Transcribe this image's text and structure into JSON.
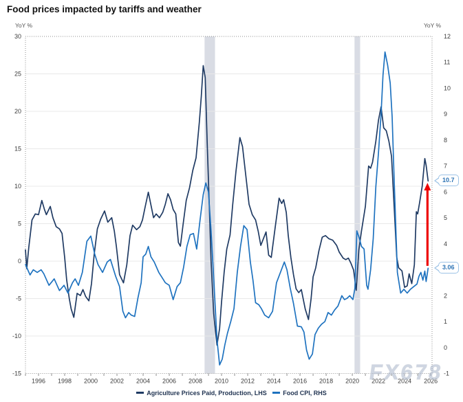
{
  "chart_data": {
    "type": "line",
    "title": "Food prices impacted by tariffs and weather",
    "watermark": "FX678",
    "grid": "horizontal-left-axis-only",
    "legend_position": "bottom-center",
    "left_axis": {
      "label": "YoY %",
      "min": -15,
      "max": 30,
      "ticks": [
        30,
        25,
        20,
        15,
        10,
        5,
        0,
        -5,
        -10,
        -15
      ]
    },
    "right_axis": {
      "label": "YoY %",
      "min": -1,
      "max": 12,
      "ticks": [
        12,
        11,
        10,
        9,
        8,
        7,
        6,
        5,
        4,
        3,
        2,
        1,
        0,
        -1
      ]
    },
    "x_axis": {
      "min": 1995,
      "max": 2026.1,
      "tick_labels": [
        1996,
        1998,
        2000,
        2002,
        2004,
        2006,
        2008,
        2010,
        2012,
        2014,
        2016,
        2018,
        2020,
        2022,
        2024,
        2026
      ]
    },
    "recession_bands": [
      {
        "from": 2008.7,
        "to": 2009.5
      },
      {
        "from": 2020.17,
        "to": 2020.6
      }
    ],
    "series": [
      {
        "name": "Agriculture Prices Paid, Production, LHS",
        "axis": "left",
        "color": "#1f3a63",
        "points": [
          [
            1995.0,
            1.5
          ],
          [
            1995.1,
            -1.0
          ],
          [
            1995.25,
            1.8
          ],
          [
            1995.5,
            5.5
          ],
          [
            1995.75,
            6.3
          ],
          [
            1996.0,
            6.2
          ],
          [
            1996.25,
            8.1
          ],
          [
            1996.45,
            6.9
          ],
          [
            1996.6,
            6.2
          ],
          [
            1996.9,
            7.3
          ],
          [
            1997.1,
            5.8
          ],
          [
            1997.35,
            4.6
          ],
          [
            1997.6,
            4.3
          ],
          [
            1997.8,
            3.7
          ],
          [
            1998.0,
            0.5
          ],
          [
            1998.15,
            -2.5
          ],
          [
            1998.35,
            -5.0
          ],
          [
            1998.5,
            -6.4
          ],
          [
            1998.7,
            -7.5
          ],
          [
            1998.95,
            -4.3
          ],
          [
            1999.2,
            -4.6
          ],
          [
            1999.4,
            -3.8
          ],
          [
            1999.6,
            -4.7
          ],
          [
            1999.85,
            -5.3
          ],
          [
            2000.05,
            -3.0
          ],
          [
            2000.25,
            0.8
          ],
          [
            2000.5,
            4.3
          ],
          [
            2000.75,
            5.6
          ],
          [
            2001.05,
            6.7
          ],
          [
            2001.3,
            5.2
          ],
          [
            2001.6,
            5.8
          ],
          [
            2001.8,
            4.0
          ],
          [
            2001.95,
            2.0
          ],
          [
            2002.2,
            -1.8
          ],
          [
            2002.5,
            -2.9
          ],
          [
            2002.75,
            -0.5
          ],
          [
            2003.0,
            3.4
          ],
          [
            2003.2,
            4.8
          ],
          [
            2003.5,
            4.2
          ],
          [
            2003.75,
            4.6
          ],
          [
            2003.95,
            5.5
          ],
          [
            2004.15,
            7.2
          ],
          [
            2004.4,
            9.2
          ],
          [
            2004.6,
            7.5
          ],
          [
            2004.8,
            5.8
          ],
          [
            2005.0,
            6.3
          ],
          [
            2005.25,
            5.8
          ],
          [
            2005.5,
            6.5
          ],
          [
            2005.7,
            7.6
          ],
          [
            2005.9,
            9.0
          ],
          [
            2006.1,
            8.2
          ],
          [
            2006.3,
            6.9
          ],
          [
            2006.5,
            6.3
          ],
          [
            2006.7,
            2.5
          ],
          [
            2006.85,
            2.0
          ],
          [
            2007.05,
            4.8
          ],
          [
            2007.3,
            8.1
          ],
          [
            2007.55,
            9.8
          ],
          [
            2007.8,
            12.1
          ],
          [
            2008.05,
            13.8
          ],
          [
            2008.3,
            18.5
          ],
          [
            2008.45,
            22.0
          ],
          [
            2008.6,
            26.1
          ],
          [
            2008.75,
            24.5
          ],
          [
            2008.9,
            16.0
          ],
          [
            2009.05,
            8.0
          ],
          [
            2009.2,
            0.0
          ],
          [
            2009.4,
            -7.0
          ],
          [
            2009.65,
            -11.2
          ],
          [
            2009.85,
            -9.0
          ],
          [
            2010.0,
            -5.5
          ],
          [
            2010.2,
            -1.5
          ],
          [
            2010.4,
            1.6
          ],
          [
            2010.65,
            3.5
          ],
          [
            2010.85,
            7.5
          ],
          [
            2011.1,
            12.0
          ],
          [
            2011.4,
            16.5
          ],
          [
            2011.6,
            15.3
          ],
          [
            2011.85,
            11.5
          ],
          [
            2012.1,
            7.6
          ],
          [
            2012.35,
            6.2
          ],
          [
            2012.6,
            5.5
          ],
          [
            2012.8,
            4.0
          ],
          [
            2013.0,
            2.1
          ],
          [
            2013.2,
            3.0
          ],
          [
            2013.4,
            3.9
          ],
          [
            2013.6,
            0.8
          ],
          [
            2013.8,
            0.5
          ],
          [
            2014.1,
            4.5
          ],
          [
            2014.4,
            8.4
          ],
          [
            2014.6,
            7.7
          ],
          [
            2014.75,
            8.2
          ],
          [
            2014.95,
            6.5
          ],
          [
            2015.1,
            3.4
          ],
          [
            2015.3,
            0.5
          ],
          [
            2015.5,
            -1.8
          ],
          [
            2015.7,
            -3.7
          ],
          [
            2015.9,
            -4.2
          ],
          [
            2016.1,
            -3.8
          ],
          [
            2016.4,
            -6.4
          ],
          [
            2016.65,
            -7.8
          ],
          [
            2016.85,
            -5.0
          ],
          [
            2017.0,
            -2.1
          ],
          [
            2017.2,
            -0.9
          ],
          [
            2017.45,
            1.4
          ],
          [
            2017.7,
            3.2
          ],
          [
            2017.95,
            3.4
          ],
          [
            2018.2,
            3.0
          ],
          [
            2018.5,
            2.8
          ],
          [
            2018.8,
            2.1
          ],
          [
            2019.0,
            1.2
          ],
          [
            2019.3,
            0.4
          ],
          [
            2019.5,
            0.2
          ],
          [
            2019.7,
            0.4
          ],
          [
            2019.9,
            -0.3
          ],
          [
            2020.1,
            -1.2
          ],
          [
            2020.3,
            -3.9
          ],
          [
            2020.5,
            1.5
          ],
          [
            2020.7,
            4.0
          ],
          [
            2021.0,
            7.3
          ],
          [
            2021.25,
            12.7
          ],
          [
            2021.4,
            12.4
          ],
          [
            2021.55,
            13.2
          ],
          [
            2021.8,
            16.0
          ],
          [
            2022.0,
            18.8
          ],
          [
            2022.2,
            20.6
          ],
          [
            2022.4,
            17.8
          ],
          [
            2022.6,
            17.4
          ],
          [
            2022.8,
            16.0
          ],
          [
            2023.0,
            14.0
          ],
          [
            2023.2,
            7.3
          ],
          [
            2023.4,
            0.5
          ],
          [
            2023.55,
            -0.9
          ],
          [
            2023.8,
            -1.3
          ],
          [
            2024.0,
            -3.5
          ],
          [
            2024.2,
            -3.3
          ],
          [
            2024.35,
            -1.7
          ],
          [
            2024.55,
            -3.0
          ],
          [
            2024.75,
            -0.5
          ],
          [
            2024.9,
            6.6
          ],
          [
            2025.0,
            6.3
          ],
          [
            2025.15,
            7.8
          ],
          [
            2025.35,
            10.0
          ],
          [
            2025.55,
            13.7
          ],
          [
            2025.65,
            12.8
          ],
          [
            2025.8,
            10.7
          ]
        ]
      },
      {
        "name": "Food CPI, RHS",
        "axis": "right",
        "color": "#1e72bf",
        "points": [
          [
            1995.0,
            3.2
          ],
          [
            1995.35,
            2.8
          ],
          [
            1995.6,
            3.0
          ],
          [
            1995.9,
            2.9
          ],
          [
            1996.2,
            3.0
          ],
          [
            1996.4,
            2.85
          ],
          [
            1996.8,
            2.4
          ],
          [
            1997.2,
            2.65
          ],
          [
            1997.6,
            2.2
          ],
          [
            1997.95,
            2.4
          ],
          [
            1998.25,
            2.1
          ],
          [
            1998.6,
            2.5
          ],
          [
            1998.8,
            2.65
          ],
          [
            1999.05,
            2.4
          ],
          [
            1999.35,
            2.9
          ],
          [
            1999.7,
            4.1
          ],
          [
            2000.0,
            4.3
          ],
          [
            2000.3,
            3.6
          ],
          [
            2000.55,
            3.2
          ],
          [
            2000.9,
            2.9
          ],
          [
            2001.25,
            3.3
          ],
          [
            2001.5,
            3.4
          ],
          [
            2001.9,
            2.75
          ],
          [
            2002.2,
            2.35
          ],
          [
            2002.45,
            1.4
          ],
          [
            2002.65,
            1.15
          ],
          [
            2002.9,
            1.35
          ],
          [
            2003.1,
            1.25
          ],
          [
            2003.35,
            1.2
          ],
          [
            2003.6,
            1.9
          ],
          [
            2003.85,
            2.5
          ],
          [
            2004.0,
            3.5
          ],
          [
            2004.2,
            3.6
          ],
          [
            2004.4,
            3.9
          ],
          [
            2004.6,
            3.5
          ],
          [
            2004.85,
            3.3
          ],
          [
            2005.2,
            2.9
          ],
          [
            2005.45,
            2.7
          ],
          [
            2005.7,
            2.5
          ],
          [
            2006.0,
            2.4
          ],
          [
            2006.3,
            1.85
          ],
          [
            2006.6,
            2.35
          ],
          [
            2006.85,
            2.5
          ],
          [
            2007.1,
            3.1
          ],
          [
            2007.35,
            3.9
          ],
          [
            2007.6,
            4.35
          ],
          [
            2007.85,
            4.4
          ],
          [
            2008.1,
            3.8
          ],
          [
            2008.35,
            4.9
          ],
          [
            2008.6,
            5.9
          ],
          [
            2008.8,
            6.35
          ],
          [
            2009.0,
            6.0
          ],
          [
            2009.2,
            4.5
          ],
          [
            2009.45,
            2.2
          ],
          [
            2009.65,
            0.3
          ],
          [
            2009.85,
            -0.67
          ],
          [
            2010.05,
            -0.45
          ],
          [
            2010.25,
            0.1
          ],
          [
            2010.45,
            0.55
          ],
          [
            2010.7,
            1.0
          ],
          [
            2010.95,
            1.5
          ],
          [
            2011.2,
            2.9
          ],
          [
            2011.45,
            3.9
          ],
          [
            2011.7,
            4.7
          ],
          [
            2011.95,
            4.55
          ],
          [
            2012.2,
            3.3
          ],
          [
            2012.4,
            2.6
          ],
          [
            2012.6,
            1.73
          ],
          [
            2012.85,
            1.65
          ],
          [
            2013.05,
            1.5
          ],
          [
            2013.3,
            1.25
          ],
          [
            2013.6,
            1.15
          ],
          [
            2013.9,
            1.4
          ],
          [
            2014.2,
            2.5
          ],
          [
            2014.5,
            2.9
          ],
          [
            2014.8,
            3.3
          ],
          [
            2015.0,
            3.0
          ],
          [
            2015.25,
            2.3
          ],
          [
            2015.5,
            1.7
          ],
          [
            2015.8,
            0.83
          ],
          [
            2016.1,
            0.8
          ],
          [
            2016.3,
            0.6
          ],
          [
            2016.5,
            -0.1
          ],
          [
            2016.7,
            -0.45
          ],
          [
            2016.95,
            -0.25
          ],
          [
            2017.15,
            0.5
          ],
          [
            2017.4,
            0.75
          ],
          [
            2017.65,
            0.9
          ],
          [
            2017.9,
            1.0
          ],
          [
            2018.15,
            1.35
          ],
          [
            2018.4,
            1.25
          ],
          [
            2018.65,
            1.45
          ],
          [
            2018.9,
            1.6
          ],
          [
            2019.2,
            2.0
          ],
          [
            2019.4,
            1.85
          ],
          [
            2019.6,
            1.9
          ],
          [
            2019.8,
            2.0
          ],
          [
            2020.05,
            1.85
          ],
          [
            2020.2,
            2.3
          ],
          [
            2020.35,
            4.5
          ],
          [
            2020.55,
            4.2
          ],
          [
            2020.7,
            3.9
          ],
          [
            2020.9,
            3.8
          ],
          [
            2021.1,
            2.4
          ],
          [
            2021.2,
            2.25
          ],
          [
            2021.4,
            3.0
          ],
          [
            2021.6,
            4.2
          ],
          [
            2021.8,
            6.2
          ],
          [
            2022.0,
            7.5
          ],
          [
            2022.2,
            9.0
          ],
          [
            2022.35,
            10.5
          ],
          [
            2022.5,
            11.4
          ],
          [
            2022.7,
            10.9
          ],
          [
            2022.9,
            10.2
          ],
          [
            2023.05,
            8.9
          ],
          [
            2023.2,
            6.5
          ],
          [
            2023.45,
            2.9
          ],
          [
            2023.7,
            2.1
          ],
          [
            2023.95,
            2.25
          ],
          [
            2024.2,
            2.1
          ],
          [
            2024.45,
            2.25
          ],
          [
            2024.7,
            2.35
          ],
          [
            2024.95,
            2.45
          ],
          [
            2025.1,
            2.75
          ],
          [
            2025.25,
            2.9
          ],
          [
            2025.4,
            2.6
          ],
          [
            2025.55,
            2.95
          ],
          [
            2025.65,
            2.55
          ],
          [
            2025.8,
            3.06
          ]
        ]
      }
    ],
    "annotations": {
      "arrow": {
        "x_year": 2025.75,
        "axis": "right",
        "from_value": 3.15,
        "to_value": 6.3,
        "color": "#ee0000"
      },
      "callouts": [
        {
          "text": "10.7",
          "series": "Agriculture Prices Paid, Production, LHS",
          "anchor_axis": "left",
          "anchor_value": 10.7
        },
        {
          "text": "3.06",
          "series": "Food CPI, RHS",
          "anchor_axis": "right",
          "anchor_value": 3.06
        }
      ]
    }
  }
}
